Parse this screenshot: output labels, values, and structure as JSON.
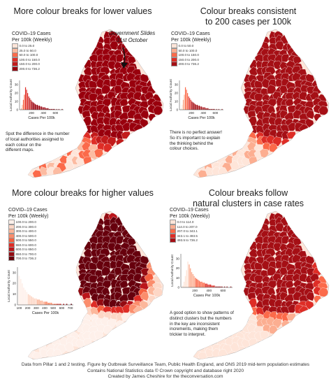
{
  "footer": {
    "line1": "Data from Pillar 1 and 2 testing. Figure by Outbreak Surveillance Team, Public Health England, and ONS 2019 mid-term population estimates",
    "line2": "Contains National Statistics data © Crown copyright and database right 2020",
    "line3": "Created by James Cheshire for the theconversation.com"
  },
  "panels": [
    {
      "title_lines": [
        "More colour breaks for lower values"
      ],
      "legend_title_lines": [
        "COVID–19 Cases",
        "Per 100k (Weekly)"
      ],
      "legend_items": [
        {
          "label": "0.0 to 25.0",
          "color": "#fee5d9"
        },
        {
          "label": "25.0 to 50.0",
          "color": "#fcbba1"
        },
        {
          "label": "50.0 to 100.0",
          "color": "#fb6a4a"
        },
        {
          "label": "100.0 to 150.0",
          "color": "#de2d26"
        },
        {
          "label": "150.0 to 200.0",
          "color": "#c21b1b"
        },
        {
          "label": "200.0 to 736.2",
          "color": "#99000d"
        }
      ],
      "annotation_lines": [
        "Government Slides",
        "31st October"
      ],
      "note_lines": [
        "Spot the difference in the number",
        "of local authorities assigned to",
        "each colour on the",
        "different maps."
      ],
      "histogram": {
        "ylabel": "Local Authority Count",
        "xlabel": "Cases Per 100k",
        "yticks": [
          0,
          10,
          20,
          30
        ],
        "xticks": [
          200,
          400,
          600
        ]
      }
    },
    {
      "title_lines": [
        "Colour breaks consistent",
        "to 200 cases per 100k"
      ],
      "legend_title_lines": [
        "COVID–19 Cases",
        "Per 100k (Weekly)"
      ],
      "legend_items": [
        {
          "label": "0.0 to 50.0",
          "color": "#fee5d9"
        },
        {
          "label": "50.0 to 100.0",
          "color": "#fcae91"
        },
        {
          "label": "100.0 to 150.0",
          "color": "#fb6a4a"
        },
        {
          "label": "150.0 to 200.0",
          "color": "#de2d26"
        },
        {
          "label": "200.0 to 736.2",
          "color": "#a50f15"
        }
      ],
      "note_lines": [
        "There is no perfect answer!",
        "So it's important to explain",
        "the thinking behind the",
        "colour choices."
      ],
      "histogram": {
        "ylabel": "Local Authority Count",
        "xlabel": "Cases Per 100k",
        "yticks": [
          0,
          10,
          20,
          30
        ],
        "xticks": [
          200,
          400,
          600
        ]
      }
    },
    {
      "title_lines": [
        "More colour breaks for higher values"
      ],
      "legend_title_lines": [
        "COVID–19 Cases",
        "Per 100k (Weekly)"
      ],
      "legend_items": [
        {
          "label": "100.0 to 200.0",
          "color": "#fef0ea"
        },
        {
          "label": "200.0 to 300.0",
          "color": "#fdd7c6"
        },
        {
          "label": "300.0 to 400.0",
          "color": "#fcb79b"
        },
        {
          "label": "400.0 to 500.0",
          "color": "#fb8d6c"
        },
        {
          "label": "500.0 to 550.0",
          "color": "#f5603f"
        },
        {
          "label": "550.0 to 600.0",
          "color": "#de2d26"
        },
        {
          "label": "600.0 to 650.0",
          "color": "#bb151b"
        },
        {
          "label": "650.0 to 700.0",
          "color": "#930b12"
        },
        {
          "label": "700.0 to 736.2",
          "color": "#67000d"
        }
      ],
      "histogram": {
        "ylabel": "Local Authority Count",
        "xlabel": "Cases Per 100k",
        "yticks": [
          0,
          10,
          20,
          30
        ],
        "xticks": [
          100,
          200,
          300,
          400,
          500,
          600,
          700
        ]
      }
    },
    {
      "title_lines": [
        "Colour breaks follow",
        "natural clusters in case rates"
      ],
      "legend_title_lines": [
        "COVID–19 Cases",
        "Per 100k (Weekly)"
      ],
      "legend_items": [
        {
          "label": "0.0 to 114.0",
          "color": "#fee5d9"
        },
        {
          "label": "114.0 to 207.0",
          "color": "#fcae91"
        },
        {
          "label": "207.0 to 343.1",
          "color": "#fb6a4a"
        },
        {
          "label": "343.1 to 493.5",
          "color": "#de2d26"
        },
        {
          "label": "493.5 to 736.2",
          "color": "#a50f15"
        }
      ],
      "note_lines": [
        "A good option to show patterns of",
        "distinct clusters but the numbers",
        "in the key are inconsistent",
        "increments, making them",
        "trickier to interpret."
      ],
      "histogram": {
        "ylabel": "Local Authority Count",
        "xlabel": "Cases Per 100k",
        "yticks": [
          0,
          10,
          20,
          30
        ],
        "xticks": [
          200,
          400,
          600
        ]
      }
    }
  ]
}
